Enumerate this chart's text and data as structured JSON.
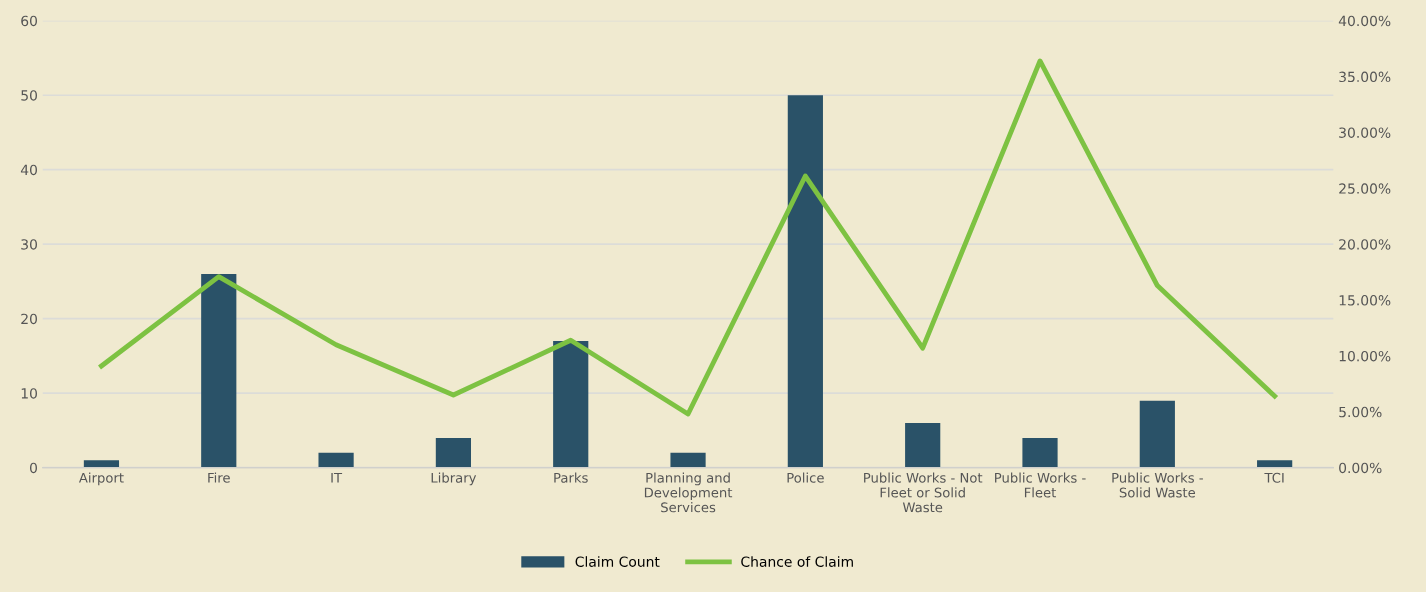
{
  "chart_data": {
    "type": "bar",
    "categories": [
      "Airport",
      "Fire",
      "IT",
      "Library",
      "Parks",
      "Planning and\nDevelopment\nServices",
      "Police",
      "Public Works - Not\nFleet or Solid\nWaste",
      "Public Works -\nFleet",
      "Public Works -\nSolid Waste",
      "TCI"
    ],
    "series": [
      {
        "name": "Claim Count",
        "color": "#2a5268",
        "values": [
          1,
          26,
          2,
          4,
          17,
          2,
          50,
          6,
          4,
          9,
          1
        ]
      },
      {
        "name": "Chance of Claim",
        "type": "line",
        "axis": "y2",
        "color": "#7dc242",
        "values": [
          9.1,
          17.1,
          11.0,
          6.5,
          11.4,
          4.8,
          26.1,
          10.7,
          36.4,
          16.3,
          6.4
        ]
      }
    ],
    "ylim": [
      0,
      60
    ],
    "yticks": [
      0,
      10,
      20,
      30,
      40,
      50,
      60
    ],
    "y2lim": [
      0,
      40
    ],
    "y2ticks": [
      {
        "value": 0,
        "label": "0.00%"
      },
      {
        "value": 5,
        "label": "5.00%"
      },
      {
        "value": 10,
        "label": "10.00%"
      },
      {
        "value": 15,
        "label": "15.00%"
      },
      {
        "value": 20,
        "label": "20.00%"
      },
      {
        "value": 25,
        "label": "25.00%"
      },
      {
        "value": 30,
        "label": "30.00%"
      },
      {
        "value": 35,
        "label": "35.00%"
      },
      {
        "value": 40,
        "label": "40.00%"
      }
    ],
    "grid": "y",
    "legend": "bottom",
    "marker": "none",
    "line_style": "solid"
  }
}
